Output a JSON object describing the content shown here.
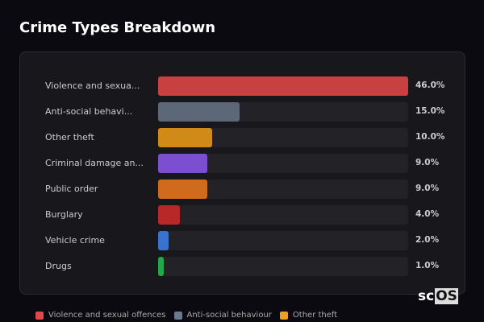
{
  "title": "Crime Types Breakdown",
  "chart_data": {
    "type": "bar",
    "orientation": "horizontal",
    "categories": [
      "Violence and sexua...",
      "Anti-social behavi...",
      "Other theft",
      "Criminal damage an...",
      "Public order",
      "Burglary",
      "Vehicle crime",
      "Drugs"
    ],
    "values": [
      46.0,
      15.0,
      10.0,
      9.0,
      9.0,
      4.0,
      2.0,
      1.0
    ],
    "value_labels": [
      "46.0%",
      "15.0%",
      "10.0%",
      "9.0%",
      "9.0%",
      "4.0%",
      "2.0%",
      "1.0%"
    ],
    "colors": [
      "#c94040",
      "#5c6878",
      "#d08a18",
      "#7b4fd0",
      "#d06a1c",
      "#b82828",
      "#3a72d0",
      "#22a84a"
    ],
    "xlim": [
      0,
      46
    ]
  },
  "legend": [
    {
      "label": "Violence and sexual offences",
      "color": "#e04848"
    },
    {
      "label": "Anti-social behaviour",
      "color": "#6b7a8c"
    },
    {
      "label": "Other theft",
      "color": "#f0a020"
    }
  ],
  "logo": {
    "text_a": "sc",
    "text_b": "OS"
  }
}
